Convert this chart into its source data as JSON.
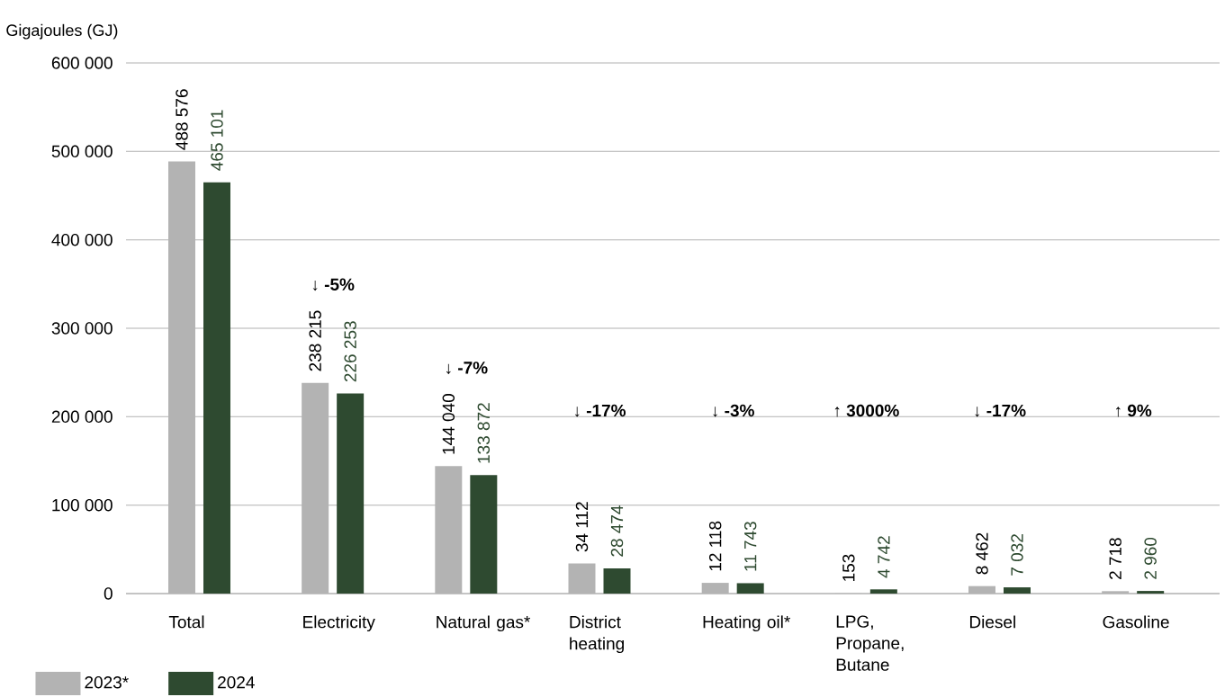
{
  "chart_data": {
    "type": "bar",
    "ylabel": "Gigajoules (GJ)",
    "categories": [
      "Total",
      "Electricity",
      "Natural gas*",
      "District heating",
      "Heating oil*",
      "LPG, Propane, Butane",
      "Diesel",
      "Gasoline"
    ],
    "series": [
      {
        "name": "2023*",
        "color": "#b3b3b3",
        "values": [
          488576,
          238215,
          144040,
          34112,
          12118,
          153,
          8462,
          2718
        ],
        "value_labels": [
          "488 576",
          "238 215",
          "144 040",
          "34 112",
          "12 118",
          "153",
          "8 462",
          "2 718"
        ]
      },
      {
        "name": "2024",
        "color": "#2e4a30",
        "values": [
          465101,
          226253,
          133872,
          28474,
          11743,
          4742,
          7032,
          2960
        ],
        "value_labels": [
          "465 101",
          "226 253",
          "133 872",
          "28 474",
          "11 743",
          "4 742",
          "7 032",
          "2 960"
        ]
      }
    ],
    "ylim": [
      0,
      600000
    ],
    "yticks": [
      {
        "value": 0,
        "label": "0"
      },
      {
        "value": 100000,
        "label": "100 000"
      },
      {
        "value": 200000,
        "label": "200 000"
      },
      {
        "value": 300000,
        "label": "300 000"
      },
      {
        "value": 400000,
        "label": "400 000"
      },
      {
        "value": 500000,
        "label": "500 000"
      },
      {
        "value": 600000,
        "label": "600 000"
      }
    ],
    "grid": "y",
    "legend": "bottom left",
    "annotations": [
      "↓ -5%",
      "↓ -7%",
      "↓ -17%",
      "↓ -3%",
      "↑ 3000%",
      "↓ -17%",
      "↑ 9%"
    ]
  }
}
